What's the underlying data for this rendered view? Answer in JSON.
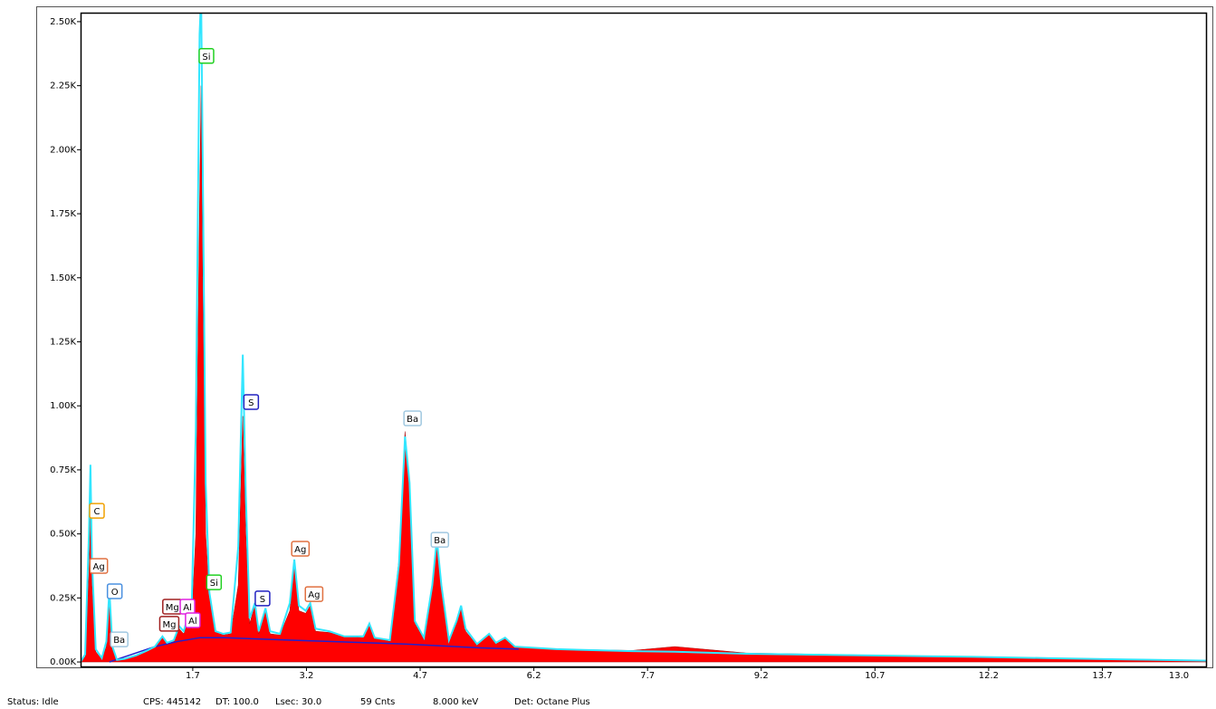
{
  "chart_data": {
    "type": "area",
    "xlim": [
      0.22,
      15.08
    ],
    "xticks": [
      1.7,
      3.2,
      4.7,
      6.2,
      7.7,
      9.2,
      10.7,
      12.2,
      13.7
    ],
    "x_end_label": "13.0",
    "ylim": [
      -21,
      2535
    ],
    "yticks": [
      {
        "value": 0,
        "label": "0.00K"
      },
      {
        "value": 250,
        "label": "0.25K"
      },
      {
        "value": 500,
        "label": "0.50K"
      },
      {
        "value": 750,
        "label": "0.75K"
      },
      {
        "value": 1000,
        "label": "1.00K"
      },
      {
        "value": 1250,
        "label": "1.25K"
      },
      {
        "value": 1500,
        "label": "1.50K"
      },
      {
        "value": 1750,
        "label": "1.75K"
      },
      {
        "value": 2000,
        "label": "2.00K"
      },
      {
        "value": 2250,
        "label": "2.25K"
      },
      {
        "value": 2500,
        "label": "2.50K"
      }
    ],
    "grid": false,
    "x": [
      0.22,
      0.28,
      0.33,
      0.35,
      0.37,
      0.42,
      0.5,
      0.56,
      0.6,
      0.64,
      0.7,
      0.8,
      0.95,
      1.1,
      1.2,
      1.3,
      1.36,
      1.45,
      1.52,
      1.58,
      1.62,
      1.68,
      1.74,
      1.79,
      1.81,
      1.83,
      1.87,
      1.92,
      2.0,
      2.1,
      2.2,
      2.3,
      2.36,
      2.4,
      2.45,
      2.52,
      2.57,
      2.66,
      2.72,
      2.85,
      2.98,
      3.04,
      3.1,
      3.19,
      3.25,
      3.32,
      3.5,
      3.7,
      3.95,
      4.03,
      4.1,
      4.3,
      4.42,
      4.5,
      4.56,
      4.63,
      4.75,
      4.86,
      4.92,
      4.98,
      5.08,
      5.18,
      5.24,
      5.3,
      5.45,
      5.61,
      5.7,
      5.82,
      5.95,
      6.5,
      7.5,
      8.06,
      9.0,
      10.0,
      11.0,
      12.0,
      13.0,
      14.0,
      15.08
    ],
    "series": [
      {
        "color": "#ff0000",
        "values": [
          0,
          20,
          350,
          570,
          300,
          40,
          10,
          60,
          270,
          50,
          5,
          10,
          25,
          45,
          60,
          100,
          70,
          80,
          130,
          110,
          150,
          130,
          500,
          1800,
          2250,
          1500,
          500,
          250,
          120,
          105,
          110,
          300,
          960,
          500,
          150,
          220,
          110,
          200,
          110,
          105,
          200,
          380,
          200,
          190,
          220,
          120,
          115,
          100,
          95,
          150,
          95,
          80,
          400,
          900,
          700,
          150,
          90,
          300,
          480,
          300,
          80,
          150,
          210,
          120,
          65,
          110,
          70,
          90,
          60,
          50,
          45,
          60,
          35,
          30,
          25,
          20,
          15,
          10,
          5
        ]
      },
      {
        "color": "#33e6ff",
        "values": [
          0,
          30,
          500,
          770,
          400,
          50,
          15,
          80,
          280,
          60,
          8,
          12,
          25,
          45,
          60,
          100,
          75,
          85,
          140,
          120,
          160,
          140,
          900,
          2450,
          2600,
          2000,
          700,
          270,
          120,
          110,
          115,
          450,
          1200,
          650,
          170,
          230,
          120,
          210,
          120,
          110,
          230,
          400,
          220,
          200,
          230,
          130,
          120,
          100,
          100,
          150,
          95,
          85,
          380,
          880,
          700,
          160,
          95,
          300,
          480,
          300,
          85,
          160,
          220,
          130,
          70,
          110,
          75,
          95,
          60,
          50,
          42,
          40,
          32,
          28,
          24,
          20,
          15,
          10,
          5
        ]
      }
    ],
    "background": {
      "color": "#2020d0",
      "x": [
        0.6,
        0.9,
        1.2,
        1.5,
        1.8,
        2.1,
        3.0,
        4.5,
        5.5,
        6.0
      ],
      "values": [
        0,
        30,
        60,
        80,
        95,
        95,
        85,
        70,
        55,
        50
      ]
    },
    "peak_labels": [
      {
        "text": "C",
        "x": 0.435,
        "y": 590,
        "color": "#f0a000"
      },
      {
        "text": "Ag",
        "x": 0.46,
        "y": 375,
        "color": "#e07040"
      },
      {
        "text": "O",
        "x": 0.67,
        "y": 276,
        "color": "#4a90e0"
      },
      {
        "text": "Ba",
        "x": 0.73,
        "y": 88,
        "color": "#a0c8e0"
      },
      {
        "text": "Mg",
        "x": 1.43,
        "y": 216,
        "color": "#a02020"
      },
      {
        "text": "Al",
        "x": 1.63,
        "y": 216,
        "color": "#e020e0"
      },
      {
        "text": "Mg",
        "x": 1.39,
        "y": 149,
        "color": "#a02020"
      },
      {
        "text": "Al",
        "x": 1.7,
        "y": 163,
        "color": "#e020e0"
      },
      {
        "text": "Si",
        "x": 1.88,
        "y": 2366,
        "color": "#20d020"
      },
      {
        "text": "Si",
        "x": 1.98,
        "y": 311,
        "color": "#20d020"
      },
      {
        "text": "S",
        "x": 2.47,
        "y": 1015,
        "color": "#2020c0"
      },
      {
        "text": "S",
        "x": 2.62,
        "y": 248,
        "color": "#2020c0"
      },
      {
        "text": "Ag",
        "x": 3.12,
        "y": 442,
        "color": "#e07040"
      },
      {
        "text": "Ag",
        "x": 3.3,
        "y": 265,
        "color": "#e07040"
      },
      {
        "text": "Ba",
        "x": 4.6,
        "y": 951,
        "color": "#a0c8e0"
      },
      {
        "text": "Ba",
        "x": 4.96,
        "y": 477,
        "color": "#a0c8e0"
      }
    ]
  },
  "status_bar": [
    "Status: Idle",
    "CPS: 445142",
    "DT: 100.0",
    "Lsec: 30.0",
    "59 Cnts",
    "8.000 keV",
    "Det: Octane Plus"
  ]
}
